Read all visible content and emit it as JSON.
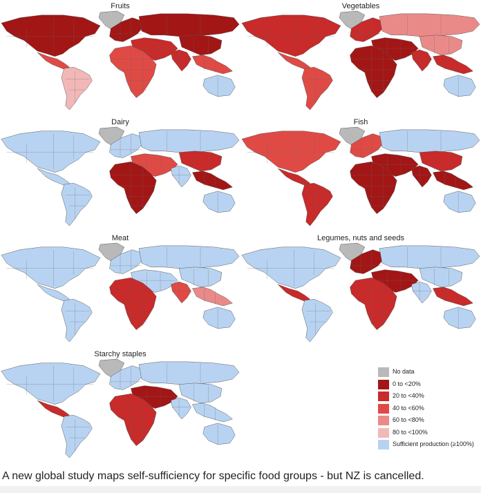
{
  "panels": [
    {
      "title": "Fruits",
      "regions": {
        "greenland": "no_data",
        "northern_america": "r20",
        "central_america": "r60",
        "south_america": "r100",
        "europe": "r20",
        "russia": "r20",
        "middle_east_asia": "r40",
        "africa": "r60",
        "south_asia": "r40",
        "east_asia": "r20",
        "southeast_asia": "r60",
        "oceania": "suff"
      }
    },
    {
      "title": "Vegetables",
      "regions": {
        "greenland": "no_data",
        "northern_america": "r40",
        "central_america": "r60",
        "south_america": "r60",
        "europe": "r40",
        "russia": "r80",
        "middle_east_asia": "r20",
        "africa": "r20",
        "south_asia": "r40",
        "east_asia": "r80",
        "southeast_asia": "r40",
        "oceania": "suff"
      }
    },
    {
      "title": "Dairy",
      "regions": {
        "greenland": "no_data",
        "northern_america": "suff",
        "central_america": "suff",
        "south_america": "suff",
        "europe": "suff",
        "russia": "suff",
        "middle_east_asia": "r60",
        "africa": "r20",
        "south_asia": "suff",
        "east_asia": "r40",
        "southeast_asia": "r20",
        "oceania": "suff"
      }
    },
    {
      "title": "Fish",
      "regions": {
        "greenland": "no_data",
        "northern_america": "r60",
        "central_america": "r40",
        "south_america": "r40",
        "europe": "r60",
        "russia": "suff",
        "middle_east_asia": "r20",
        "africa": "r20",
        "south_asia": "r20",
        "east_asia": "r40",
        "southeast_asia": "r20",
        "oceania": "suff"
      }
    },
    {
      "title": "Meat",
      "regions": {
        "greenland": "no_data",
        "northern_america": "suff",
        "central_america": "suff",
        "south_america": "suff",
        "europe": "suff",
        "russia": "suff",
        "middle_east_asia": "suff",
        "africa": "r40",
        "south_asia": "r60",
        "east_asia": "suff",
        "southeast_asia": "r80",
        "oceania": "suff"
      }
    },
    {
      "title": "Legumes, nuts and seeds",
      "regions": {
        "greenland": "no_data",
        "northern_america": "suff",
        "central_america": "r40",
        "south_america": "suff",
        "europe": "r20",
        "russia": "suff",
        "middle_east_asia": "r20",
        "africa": "r40",
        "south_asia": "suff",
        "east_asia": "suff",
        "southeast_asia": "r40",
        "oceania": "suff"
      }
    },
    {
      "title": "Starchy staples",
      "regions": {
        "greenland": "no_data",
        "northern_america": "suff",
        "central_america": "r40",
        "south_america": "suff",
        "europe": "suff",
        "russia": "suff",
        "middle_east_asia": "r20",
        "africa": "r40",
        "south_asia": "suff",
        "east_asia": "suff",
        "southeast_asia": "suff",
        "oceania": "suff"
      }
    }
  ],
  "legend": [
    {
      "key": "no_data",
      "label": "No data",
      "color": "#b9b9b9"
    },
    {
      "key": "r20",
      "label": "0 to <20%",
      "color": "#a31616"
    },
    {
      "key": "r40",
      "label": "20 to <40%",
      "color": "#c92a2a"
    },
    {
      "key": "r60",
      "label": "40 to <60%",
      "color": "#e04a45"
    },
    {
      "key": "r80",
      "label": "60 to <80%",
      "color": "#ea8a88"
    },
    {
      "key": "r100",
      "label": "80 to <100%",
      "color": "#f2b8b8"
    },
    {
      "key": "suff",
      "label": "Sufficient production (≥100%)",
      "color": "#b8d3f2"
    }
  ],
  "caption": "A new global study maps self-sufficiency for specific food groups - but NZ is cancelled."
}
